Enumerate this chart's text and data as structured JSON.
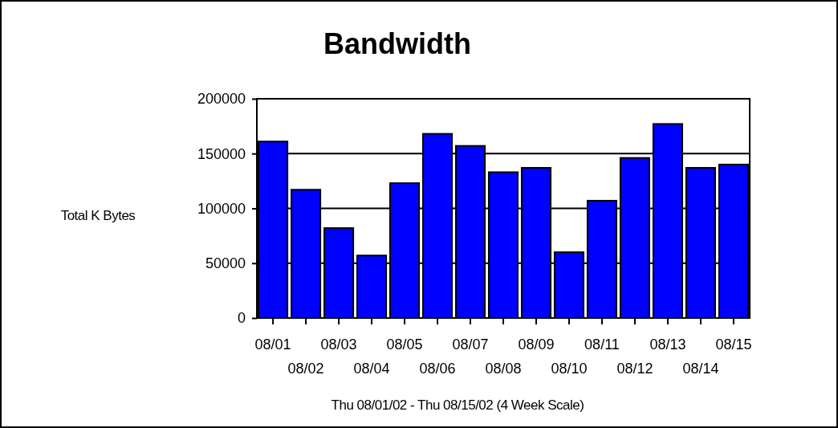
{
  "chart_data": {
    "type": "bar",
    "title": "Bandwidth",
    "ylabel": "Total K Bytes",
    "xlabel": "Thu 08/01/02 - Thu 08/15/02 (4 Week Scale)",
    "categories": [
      "08/01",
      "08/02",
      "08/03",
      "08/04",
      "08/05",
      "08/06",
      "08/07",
      "08/08",
      "08/09",
      "08/10",
      "08/11",
      "08/12",
      "08/13",
      "08/14",
      "08/15"
    ],
    "values": [
      161000,
      117000,
      82000,
      57000,
      123000,
      168000,
      157000,
      133000,
      137000,
      60000,
      107000,
      146000,
      177000,
      137000,
      140000
    ],
    "color": "#0000ff",
    "ylim": [
      0,
      200000
    ],
    "yticks": [
      0,
      50000,
      100000,
      150000,
      200000
    ],
    "grid": "y"
  }
}
